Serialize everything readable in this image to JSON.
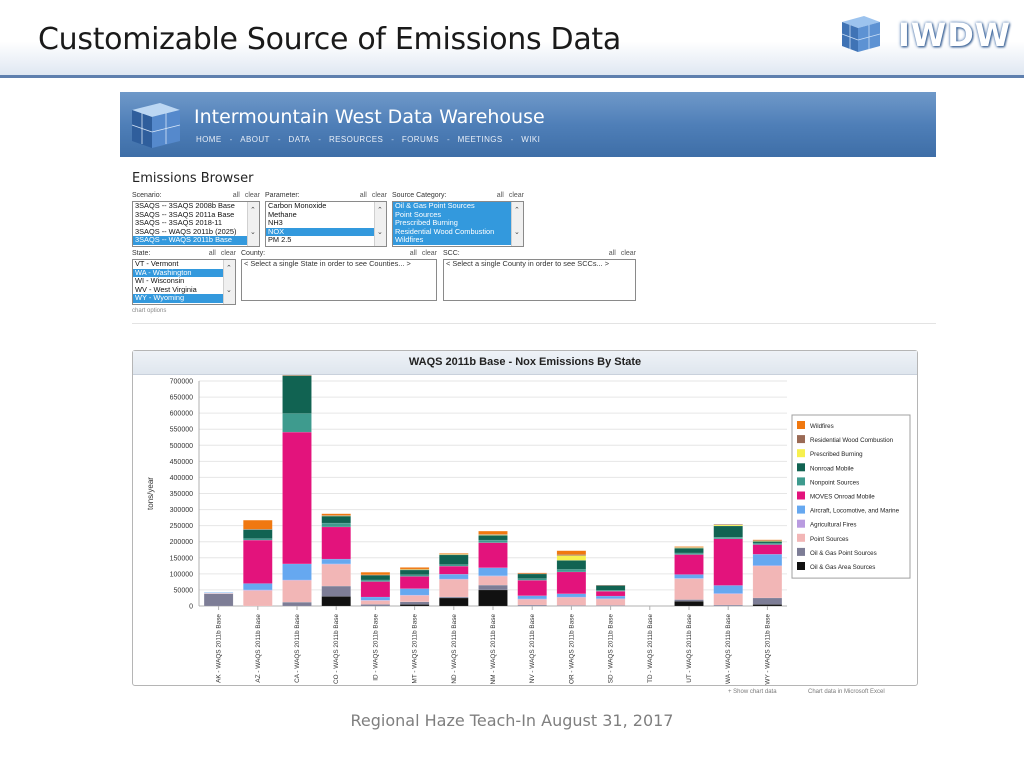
{
  "slide": {
    "title": "Customizable Source of Emissions Data",
    "logo_text": "IWDW",
    "footer": "Regional Haze Teach-In August 31, 2017"
  },
  "site": {
    "title": "Intermountain West Data Warehouse",
    "nav": [
      "HOME",
      "ABOUT",
      "DATA",
      "RESOURCES",
      "FORUMS",
      "MEETINGS",
      "WIKI"
    ],
    "nav_separator": "-",
    "page_heading": "Emissions Browser",
    "chart_options_link": "chart options",
    "all_label": "all",
    "clear_label": "clear"
  },
  "filters": {
    "scenario": {
      "label": "Scenario:",
      "options": [
        {
          "text": "3SAQS -- 3SAQS 2008b Base",
          "selected": false
        },
        {
          "text": "3SAQS -- 3SAQS 2011a Base",
          "selected": false
        },
        {
          "text": "3SAQS -- 3SAQS 2018-11",
          "selected": false
        },
        {
          "text": "3SAQS -- WAQS 2011b (2025)",
          "selected": false
        },
        {
          "text": "3SAQS -- WAQS 2011b Base",
          "selected": true
        }
      ]
    },
    "parameter": {
      "label": "Parameter:",
      "options": [
        {
          "text": "Carbon Monoxide",
          "selected": false
        },
        {
          "text": "Methane",
          "selected": false
        },
        {
          "text": "NH3",
          "selected": false
        },
        {
          "text": "NOX",
          "selected": true
        },
        {
          "text": "PM 2.5",
          "selected": false
        }
      ]
    },
    "source_category": {
      "label": "Source Category:",
      "options": [
        {
          "text": "Oil & Gas Point Sources",
          "selected": true
        },
        {
          "text": "Point Sources",
          "selected": true
        },
        {
          "text": "Prescribed Burning",
          "selected": true
        },
        {
          "text": "Residential Wood Combustion",
          "selected": true
        },
        {
          "text": "Wildfires",
          "selected": true
        }
      ]
    },
    "state": {
      "label": "State:",
      "options": [
        {
          "text": "VT - Vermont",
          "selected": false
        },
        {
          "text": "WA - Washington",
          "selected": true
        },
        {
          "text": "WI - Wisconsin",
          "selected": false
        },
        {
          "text": "WV - West Virginia",
          "selected": false
        },
        {
          "text": "WY - Wyoming",
          "selected": true
        }
      ]
    },
    "county": {
      "label": "County:",
      "placeholder": "< Select a single State in order to see Counties... >"
    },
    "scc": {
      "label": "SCC:",
      "placeholder": "< Select a single County in order to see SCCs... >"
    }
  },
  "chart_footer": {
    "show_data": "+ Show chart data",
    "excel": "Chart data in Microsoft Excel"
  },
  "chart_data": {
    "type": "bar",
    "stacked": true,
    "title": "WAQS 2011b Base - Nox Emissions By State",
    "ylabel": "tons/year",
    "xlabel": "",
    "ylim": [
      0,
      700000
    ],
    "yticks": [
      0,
      50000,
      100000,
      150000,
      200000,
      250000,
      300000,
      350000,
      400000,
      450000,
      500000,
      550000,
      600000,
      650000,
      700000
    ],
    "grid": true,
    "legend_position": "right",
    "categories": [
      "AK - WAQS 2011b Base",
      "AZ - WAQS 2011b Base",
      "CA - WAQS 2011b Base",
      "CO - WAQS 2011b Base",
      "ID - WAQS 2011b Base",
      "MT - WAQS 2011b Base",
      "ND - WAQS 2011b Base",
      "NM - WAQS 2011b Base",
      "NV - WAQS 2011b Base",
      "OR - WAQS 2011b Base",
      "SD - WAQS 2011b Base",
      "TD - WAQS 2011b Base",
      "UT - WAQS 2011b Base",
      "WA - WAQS 2011b Base",
      "WY - WAQS 2011b Base"
    ],
    "series": [
      {
        "name": "Oil & Gas Area Sources",
        "color": "#111111",
        "values": [
          0,
          0,
          0,
          30000,
          0,
          5000,
          25000,
          50000,
          0,
          0,
          0,
          0,
          15000,
          0,
          5000
        ]
      },
      {
        "name": "Oil & Gas Point Sources",
        "color": "#7d7d96",
        "values": [
          38000,
          0,
          12000,
          32000,
          5000,
          8000,
          3000,
          15000,
          3000,
          2000,
          2000,
          0,
          5000,
          3000,
          20000
        ]
      },
      {
        "name": "Point Sources",
        "color": "#f2b6b6",
        "values": [
          2000,
          48000,
          68000,
          68000,
          12000,
          20000,
          55000,
          28000,
          18000,
          25000,
          20000,
          0,
          65000,
          35000,
          100000
        ]
      },
      {
        "name": "Agricultural Fires",
        "color": "#b99be0",
        "values": [
          0,
          2000,
          1000,
          1000,
          1000,
          1000,
          1000,
          1000,
          1000,
          1000,
          1000,
          0,
          1000,
          1000,
          1000
        ]
      },
      {
        "name": "Aircraft, Locomotive, and Marine",
        "color": "#66a8f0",
        "values": [
          2000,
          20000,
          50000,
          15000,
          10000,
          20000,
          15000,
          25000,
          10000,
          10000,
          8000,
          0,
          12000,
          25000,
          35000
        ]
      },
      {
        "name": "MOVES Onroad Mobile",
        "color": "#e3137c",
        "values": [
          0,
          135000,
          410000,
          100000,
          48000,
          38000,
          25000,
          78000,
          48000,
          68000,
          15000,
          0,
          62000,
          145000,
          30000
        ]
      },
      {
        "name": "Nonpoint Sources",
        "color": "#3e9b8e",
        "values": [
          0,
          5000,
          58000,
          12000,
          5000,
          5000,
          5000,
          8000,
          5000,
          8000,
          3000,
          0,
          5000,
          5000,
          5000
        ]
      },
      {
        "name": "Nonroad Mobile",
        "color": "#116352",
        "values": [
          0,
          28000,
          118000,
          22000,
          15000,
          15000,
          30000,
          15000,
          15000,
          28000,
          15000,
          0,
          15000,
          35000,
          5000
        ]
      },
      {
        "name": "Prescribed Burning",
        "color": "#f7f04e",
        "values": [
          0,
          0,
          0,
          1000,
          0,
          2000,
          2000,
          2000,
          0,
          15000,
          0,
          0,
          2000,
          3000,
          2000
        ]
      },
      {
        "name": "Residential Wood Combustion",
        "color": "#9a6a55",
        "values": [
          0,
          1000,
          1000,
          1000,
          1000,
          1000,
          1000,
          1000,
          1000,
          3000,
          1000,
          0,
          1000,
          2000,
          1000
        ]
      },
      {
        "name": "Wildfires",
        "color": "#f07810",
        "values": [
          0,
          28000,
          12000,
          5000,
          8000,
          5000,
          2000,
          10000,
          2000,
          12000,
          0,
          0,
          2000,
          0,
          2000
        ]
      }
    ]
  }
}
